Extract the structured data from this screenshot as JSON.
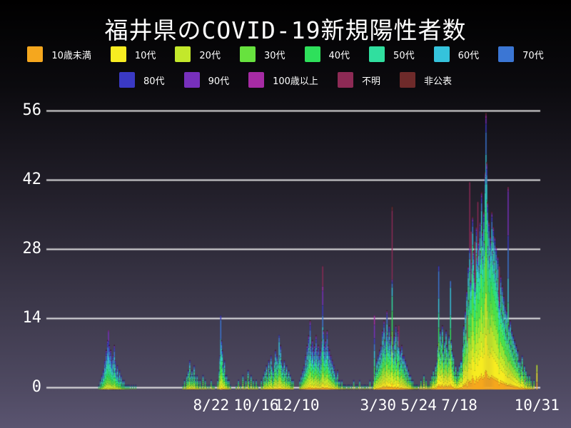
{
  "title": "福井県のCOVID-19新規陽性者数",
  "colors": {
    "background_top": "#000000",
    "background_bottom": "#5a5470",
    "gridline": "#f2f2f2",
    "text": "#ffffff"
  },
  "chart_data": {
    "type": "bar",
    "stacked": true,
    "title": "福井県のCOVID-19新規陽性者数",
    "xlabel": "",
    "ylabel": "",
    "ylim": [
      0,
      56
    ],
    "y_ticks": [
      0,
      14,
      28,
      42,
      56
    ],
    "grid": "horizontal",
    "legend_position": "top",
    "x_tick_labels": [
      {
        "label": "8/22",
        "day": 224
      },
      {
        "label": "10/16",
        "day": 285
      },
      {
        "label": "12/10",
        "day": 340
      },
      {
        "label": "3/30",
        "day": 450
      },
      {
        "label": "5/24",
        "day": 505
      },
      {
        "label": "7/18",
        "day": 560
      },
      {
        "label": "10/31",
        "day": 665
      }
    ],
    "age_groups": [
      {
        "label": "10歳未満",
        "color": "#F5A71E"
      },
      {
        "label": "10代",
        "color": "#F7EC21"
      },
      {
        "label": "20代",
        "color": "#C3E82B"
      },
      {
        "label": "30代",
        "color": "#67E23E"
      },
      {
        "label": "40代",
        "color": "#2EE05B"
      },
      {
        "label": "50代",
        "color": "#30DF9F"
      },
      {
        "label": "60代",
        "color": "#35C3DC"
      },
      {
        "label": "70代",
        "color": "#3B76D4"
      },
      {
        "label": "80代",
        "color": "#3A39C4"
      },
      {
        "label": "90代",
        "color": "#7730BC"
      },
      {
        "label": "100歳以上",
        "color": "#A62BA4"
      },
      {
        "label": "不明",
        "color": "#8D2A55"
      },
      {
        "label": "非公表",
        "color": "#6E2A2A"
      }
    ],
    "legend_rows": [
      [
        0,
        1,
        2,
        3,
        4,
        5,
        6,
        7
      ],
      [
        8,
        9,
        10,
        11,
        12
      ]
    ],
    "profiles": {
      "wave1": [
        0.01,
        0.03,
        0.1,
        0.12,
        0.14,
        0.19,
        0.15,
        0.12,
        0.08,
        0.04,
        0.01,
        0.005,
        0.005
      ],
      "late2020": [
        0.03,
        0.08,
        0.17,
        0.15,
        0.14,
        0.15,
        0.11,
        0.08,
        0.05,
        0.02,
        0.01,
        0.005,
        0.005
      ],
      "winter21": [
        0.04,
        0.07,
        0.15,
        0.13,
        0.13,
        0.14,
        0.11,
        0.09,
        0.07,
        0.04,
        0.015,
        0.01,
        0.005
      ],
      "spring21": [
        0.05,
        0.1,
        0.17,
        0.15,
        0.14,
        0.12,
        0.1,
        0.07,
        0.05,
        0.025,
        0.01,
        0.01,
        0.005
      ],
      "summer21": [
        0.08,
        0.16,
        0.18,
        0.16,
        0.14,
        0.11,
        0.07,
        0.04,
        0.025,
        0.015,
        0.005,
        0.005,
        0.005
      ]
    },
    "profile_eras": [
      {
        "until": 185,
        "key": "wave1"
      },
      {
        "until": 335,
        "key": "late2020"
      },
      {
        "until": 443,
        "key": "winter21"
      },
      {
        "until": 505,
        "key": "spring21"
      },
      {
        "until": 9999,
        "key": "summer21"
      }
    ],
    "special_days": {
      "85": [
        0,
        0.02,
        0.06,
        0.08,
        0.1,
        0.16,
        0.16,
        0.14,
        0.1,
        0.16,
        0.02,
        0,
        0
      ],
      "237": [
        0,
        0.04,
        0.08,
        0.1,
        0.1,
        0.14,
        0.22,
        0.26,
        0.06,
        0,
        0,
        0,
        0
      ],
      "316": [
        0.03,
        0.08,
        0.14,
        0.13,
        0.12,
        0.12,
        0.26,
        0.08,
        0.04,
        0,
        0,
        0,
        0
      ],
      "375": [
        0.02,
        0.04,
        0.09,
        0.09,
        0.1,
        0.11,
        0.11,
        0.1,
        0.09,
        0.13,
        0.04,
        0.18,
        0
      ],
      "445": [
        0,
        0.04,
        0.08,
        0.1,
        0.12,
        0.12,
        0.12,
        0.1,
        0.08,
        0.2,
        0.14,
        0,
        0
      ],
      "469": [
        0.03,
        0.07,
        0.11,
        0.11,
        0.11,
        0.08,
        0.05,
        0.02,
        0.01,
        0.01,
        0,
        0.38,
        0.02
      ],
      "478": [
        0.03,
        0.07,
        0.11,
        0.11,
        0.12,
        0.1,
        0.07,
        0.04,
        0.01,
        0,
        0,
        0.34,
        0
      ],
      "532": [
        0.04,
        0.08,
        0.13,
        0.13,
        0.12,
        0.12,
        0.12,
        0.22,
        0.04,
        0,
        0,
        0,
        0
      ],
      "548": [
        0.05,
        0.1,
        0.14,
        0.14,
        0.13,
        0.12,
        0.26,
        0.06,
        0,
        0,
        0,
        0,
        0
      ],
      "571": [
        0.04,
        0.09,
        0.12,
        0.12,
        0.11,
        0.09,
        0.06,
        0.03,
        0.01,
        0.01,
        0,
        0.32,
        0
      ],
      "574": [
        0.04,
        0.09,
        0.12,
        0.12,
        0.11,
        0.09,
        0.06,
        0.03,
        0.01,
        0.01,
        0,
        0.32,
        0
      ],
      "576": [
        0.04,
        0.09,
        0.12,
        0.12,
        0.11,
        0.09,
        0.06,
        0.03,
        0.01,
        0.01,
        0,
        0.32,
        0
      ],
      "581": [
        0.04,
        0.09,
        0.12,
        0.12,
        0.11,
        0.09,
        0.06,
        0.03,
        0.01,
        0.01,
        0,
        0.32,
        0
      ],
      "585": [
        0.04,
        0.09,
        0.12,
        0.12,
        0.11,
        0.09,
        0.06,
        0.03,
        0.01,
        0.01,
        0,
        0.32,
        0
      ],
      "596": [
        0.07,
        0.13,
        0.15,
        0.15,
        0.14,
        0.13,
        0.08,
        0.08,
        0.03,
        0.02,
        0.01,
        0.005,
        0.005
      ],
      "614": [
        0.04,
        0.09,
        0.12,
        0.12,
        0.11,
        0.09,
        0.06,
        0.03,
        0.01,
        0.01,
        0,
        0.32,
        0
      ],
      "626": [
        0.02,
        0.04,
        0.08,
        0.09,
        0.1,
        0.1,
        0.12,
        0.14,
        0.07,
        0.22,
        0.01,
        0.01,
        0
      ],
      "649": [
        0.05,
        0.08,
        0.12,
        0.12,
        0.12,
        0.12,
        0.1,
        0.08,
        0.06,
        0.15,
        0,
        0,
        0
      ],
      "665": [
        0.3,
        0.4,
        0.3,
        0,
        0,
        0,
        0,
        0,
        0,
        0,
        0,
        0,
        0
      ]
    },
    "clusters": [
      {
        "start": 72,
        "values": [
          1,
          0,
          2,
          1,
          3,
          2,
          4,
          3,
          6,
          5,
          8,
          7,
          10,
          12,
          9,
          7,
          8,
          6,
          5,
          7,
          4,
          9,
          6,
          4,
          3,
          5,
          3,
          2,
          4,
          2,
          3,
          1,
          2,
          1,
          2,
          1,
          0,
          1,
          0,
          1,
          0,
          1,
          0,
          0,
          1,
          0,
          0,
          1,
          0,
          0,
          1
        ]
      },
      {
        "start": 186,
        "values": [
          1,
          0,
          2,
          0,
          1,
          3,
          2,
          4,
          2,
          6,
          3,
          2,
          4,
          3,
          2,
          5,
          3,
          2,
          1,
          3,
          2,
          1,
          0,
          2,
          0,
          1,
          0,
          3,
          1,
          0,
          2,
          0,
          1,
          0,
          0,
          1,
          0,
          0,
          2,
          0,
          1,
          0,
          1
        ]
      },
      {
        "start": 233,
        "values": [
          2,
          0,
          4,
          7,
          15,
          10,
          8,
          5,
          4,
          6,
          3,
          2,
          3,
          2,
          1,
          2,
          0,
          1
        ]
      },
      {
        "start": 258,
        "values": [
          1,
          0,
          0,
          2,
          0,
          0,
          1,
          0,
          0,
          3,
          0,
          1,
          0,
          2,
          0,
          0,
          4,
          2,
          1,
          0,
          3,
          0,
          1,
          2,
          0,
          1,
          0,
          2,
          0,
          1
        ]
      },
      {
        "start": 292,
        "values": [
          2,
          1,
          0,
          3,
          2,
          4,
          2,
          5,
          3,
          2,
          6,
          4,
          3,
          7,
          5,
          2,
          4,
          3,
          6,
          8,
          5,
          7,
          4,
          6,
          11,
          7,
          9,
          6,
          4,
          5,
          3,
          6,
          4,
          2,
          5,
          3,
          2,
          4,
          2,
          3,
          1,
          2,
          1,
          2
        ]
      },
      {
        "start": 344,
        "values": [
          2,
          1,
          3,
          2,
          4,
          3,
          5,
          4,
          7,
          5,
          9,
          6,
          11,
          8,
          14,
          9,
          7,
          10,
          8,
          6,
          9,
          7,
          11,
          8,
          6,
          9,
          7,
          5,
          8,
          6,
          10,
          25,
          12,
          9,
          7,
          10,
          8,
          12,
          9,
          6,
          8,
          5,
          7,
          4,
          6,
          3,
          5,
          4,
          2,
          3,
          2,
          4,
          2,
          1,
          2,
          1,
          0,
          2,
          0,
          1,
          1,
          0,
          1,
          0,
          0,
          1,
          0,
          1
        ]
      },
      {
        "start": 414,
        "values": [
          1,
          0,
          0,
          2,
          0,
          0,
          1,
          0,
          1,
          0,
          0,
          2,
          0,
          0,
          1,
          0,
          0,
          1,
          0,
          1,
          0,
          0,
          1,
          0,
          0,
          2,
          0,
          0,
          1,
          0
        ]
      },
      {
        "start": 444,
        "values": [
          2,
          15,
          3,
          4,
          6,
          4,
          7,
          5,
          8,
          6,
          9,
          7,
          12,
          9,
          14,
          10,
          8,
          12,
          16,
          11,
          9,
          13,
          10,
          8,
          11,
          37,
          9,
          7,
          11,
          8,
          13,
          6,
          9,
          12,
          13,
          5,
          8,
          6,
          9,
          7,
          5,
          7,
          4,
          6,
          3,
          5,
          2,
          4,
          3,
          2,
          3,
          2,
          1,
          2,
          1,
          0,
          1,
          0,
          1,
          1
        ]
      },
      {
        "start": 506,
        "values": [
          1,
          0,
          2,
          0,
          1,
          0,
          3,
          0,
          1,
          2,
          0,
          1,
          0,
          1,
          0
        ]
      },
      {
        "start": 521,
        "values": [
          2,
          1,
          3,
          2,
          4,
          3,
          2,
          5,
          3,
          6,
          9,
          25,
          8,
          12,
          7,
          10,
          13,
          8,
          6,
          10,
          7,
          12,
          9,
          6,
          8,
          11,
          7,
          22,
          10,
          8,
          5,
          7,
          4,
          3,
          5,
          3,
          2,
          4
        ]
      },
      {
        "start": 559,
        "values": [
          3,
          5,
          4,
          6,
          6,
          4,
          9,
          13,
          10,
          16,
          12,
          20,
          15,
          25,
          18,
          42,
          22,
          32,
          26,
          35,
          28,
          24,
          30,
          22,
          33,
          27,
          38,
          30,
          25,
          34,
          28,
          40,
          32,
          27,
          36,
          30,
          44,
          56,
          46,
          38,
          29,
          34,
          27,
          31,
          30,
          36,
          28,
          33,
          26,
          31,
          24,
          29,
          22,
          27,
          20,
          25,
          18,
          23,
          16,
          21,
          15,
          19,
          14,
          17,
          12,
          16,
          11,
          41,
          13,
          10,
          14,
          9,
          12,
          8,
          11,
          7,
          10,
          6,
          9,
          5,
          8,
          6
        ]
      },
      {
        "start": 641,
        "values": [
          4,
          6,
          3,
          5,
          7,
          4,
          3,
          5,
          2,
          4,
          2,
          3,
          1,
          2,
          3,
          1,
          2,
          0,
          1,
          0,
          2,
          0,
          0,
          0,
          5
        ]
      }
    ]
  }
}
